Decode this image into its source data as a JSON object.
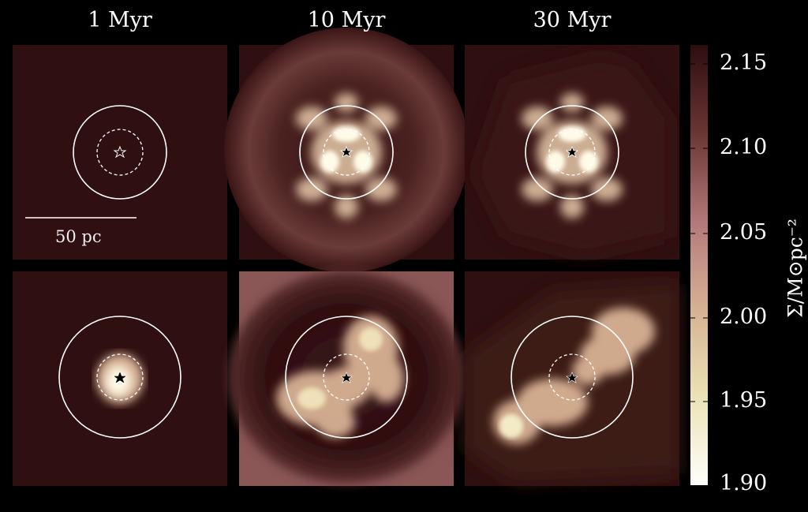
{
  "columns": [
    "1 Myr",
    "10 Myr",
    "30 Myr"
  ],
  "scalebar": {
    "label": "50 pc"
  },
  "colorbar": {
    "label": "Σ/M⊙pc⁻²",
    "ticks": [
      "2.15",
      "2.10",
      "2.05",
      "2.00",
      "1.95",
      "1.90"
    ],
    "colors": [
      "#2e0d0f",
      "#5a2a28",
      "#a5686d",
      "#d4a48c",
      "#e8d9a7",
      "#fdfdf6"
    ]
  },
  "colors": {
    "background": "#2f0f10",
    "circle": "#ffffff"
  }
}
